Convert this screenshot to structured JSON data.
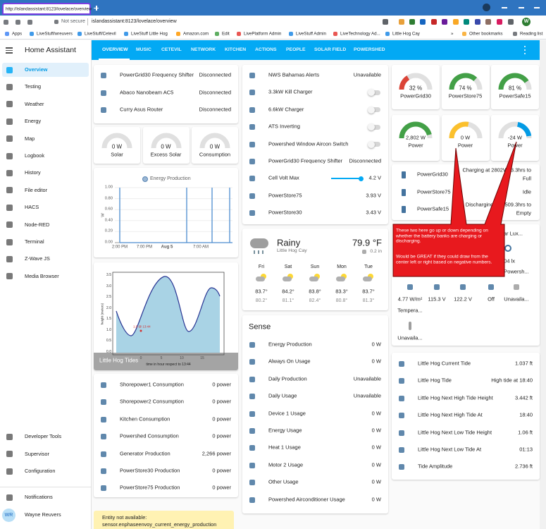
{
  "browser": {
    "tab_title": "http://islandassistant:8123/lovelace/overview",
    "security": "Not secure",
    "url": "islandassistant:8123/lovelace/overview",
    "profile_initial": "W",
    "bookmarks": [
      "Apps",
      "LiveStuff/wreuvers",
      "LiveStuff/Cetevil",
      "LiveStuff Little Hog",
      "Amazon.com",
      "Edit",
      "LivePlatform Admin",
      "LiveStuff Admin",
      "LiveTechnology Ad...",
      "Little Hog Cay",
      "»",
      "Other bookmarks",
      "Reading list"
    ]
  },
  "sidebar": {
    "title": "Home Assistant",
    "items": [
      "Overview",
      "Testing",
      "Weather",
      "Energy",
      "Map",
      "Logbook",
      "History",
      "File editor",
      "HACS",
      "Node-RED",
      "Terminal",
      "Z-Wave JS",
      "Media Browser"
    ],
    "bottom_items": [
      "Developer Tools",
      "Supervisor",
      "Configuration"
    ],
    "notifications": "Notifications",
    "user": {
      "initials": "WR",
      "name": "Wayne Reuvers"
    }
  },
  "tabs": [
    "OVERVIEW",
    "MUSIC",
    "CETEVIL",
    "NETWORK",
    "KITCHEN",
    "ACTIONS",
    "PEOPLE",
    "SOLAR FIELD",
    "POWERSHED"
  ],
  "column_1": {
    "network": [
      {
        "name": "PowerGrid30 Frequency Shifter",
        "state": "Disconnected"
      },
      {
        "name": "Abaco Nanobeam AC5",
        "state": "Disconnected"
      },
      {
        "name": "Curry Asus Router",
        "state": "Disconnected"
      }
    ],
    "solar_gauges": [
      {
        "value": "0 W",
        "name": "Solar"
      },
      {
        "value": "0 W",
        "name": "Excess Solar"
      },
      {
        "value": "0 W",
        "name": "Consumption"
      }
    ],
    "energy_chart": {
      "title": "Energy Production",
      "unit": "W",
      "yticks": [
        "1.00",
        "0.80",
        "0.60",
        "0.40",
        "0.20",
        "0.00"
      ],
      "xticks": [
        "2:00 PM",
        "7:00 PM",
        "Aug 5",
        "7:00 AM"
      ]
    },
    "tide_chart": {
      "title": "Little Hog Tides",
      "ylabel": "height (meters)",
      "xlabel": "time in hour respect to 13:44",
      "annotation": "1.0 @ 13:44",
      "yticks": [
        "3.5",
        "3.0",
        "2.5",
        "2.0",
        "1.5",
        "1.0",
        "0.5",
        "0.0"
      ],
      "xticks": [
        "0",
        "5",
        "10",
        "15"
      ]
    },
    "consumption": [
      {
        "name": "Shorepower1 Consumption",
        "state": "0 power"
      },
      {
        "name": "Shorepower2 Consumption",
        "state": "0 power"
      },
      {
        "name": "Kitchen Consumption",
        "state": "0 power"
      },
      {
        "name": "Powershed Consumption",
        "state": "0 power"
      },
      {
        "name": "Generator Production",
        "state": "2,266 power"
      },
      {
        "name": "PowerStore30 Production",
        "state": "0 power"
      },
      {
        "name": "PowerStore75 Production",
        "state": "0 power"
      }
    ],
    "warning": [
      "Entity not available:",
      "sensor.enphaseenvoy_current_energy_production"
    ]
  },
  "column_2": {
    "controls": [
      {
        "name": "NWS Bahamas Alerts",
        "state": "Unavailable"
      },
      {
        "name": "3.3kW Kill Charger",
        "toggle": false
      },
      {
        "name": "6.6kW Charger",
        "toggle": false
      },
      {
        "name": "ATS Inverting",
        "toggle": false
      },
      {
        "name": "Powershed Window Aircon Switch",
        "toggle": false
      },
      {
        "name": "PowerGrid30 Frequency Shifter",
        "state": "Disconnected"
      },
      {
        "name": "Cell Volt Max",
        "state": "4.2 V",
        "slider": true
      },
      {
        "name": "PowerStore75",
        "state": "3.93 V"
      },
      {
        "name": "PowerStore30",
        "state": "3.43 V"
      }
    ],
    "weather": {
      "condition": "Rainy",
      "location": "Little Hog Cay",
      "temperature": "79.9 °F",
      "precipitation": "0.2 in",
      "forecast": [
        {
          "day": "Fri",
          "high": "83.7°",
          "low": "80.2°"
        },
        {
          "day": "Sat",
          "high": "84.2°",
          "low": "81.1°"
        },
        {
          "day": "Sun",
          "high": "83.8°",
          "low": "82.4°"
        },
        {
          "day": "Mon",
          "high": "83.3°",
          "low": "80.8°"
        },
        {
          "day": "Tue",
          "high": "83.7°",
          "low": "81.3°"
        }
      ]
    },
    "sense": {
      "title": "Sense",
      "rows": [
        {
          "name": "Energy Production",
          "state": "0 W"
        },
        {
          "name": "Always On Usage",
          "state": "0 W"
        },
        {
          "name": "Daily Production",
          "state": "Unavailable"
        },
        {
          "name": "Daily Usage",
          "state": "Unavailable"
        },
        {
          "name": "Device 1 Usage",
          "state": "0 W"
        },
        {
          "name": "Energy Usage",
          "state": "0 W"
        },
        {
          "name": "Heat 1 Usage",
          "state": "0 W"
        },
        {
          "name": "Motor 2 Usage",
          "state": "0 W"
        },
        {
          "name": "Other Usage",
          "state": "0 W"
        },
        {
          "name": "Powershed Airconditioner Usage",
          "state": "0 W"
        }
      ]
    }
  },
  "column_3": {
    "gauge_range": [
      0,
      100
    ],
    "battery_gauges": [
      {
        "value": 32,
        "unit": "%",
        "name": "PowerGrid30",
        "color": "#db4437"
      },
      {
        "value": 74,
        "unit": "%",
        "name": "PowerStore75",
        "color": "#43a047"
      },
      {
        "value": 81,
        "unit": "%",
        "name": "PowerSafe15",
        "color": "#43a047"
      }
    ],
    "power_gauges": [
      {
        "value": "2,802 W",
        "name": "Power",
        "color": "#43a047"
      },
      {
        "value": "0 W",
        "name": "Power",
        "color": "#fbc02d"
      },
      {
        "value": "-24 W",
        "name": "Power",
        "color": "#039be5"
      }
    ],
    "batteries": [
      {
        "name": "PowerGrid30",
        "status": [
          "Charging at 2802W, 3.3hrs to",
          "Full"
        ]
      },
      {
        "name": "PowerStore75",
        "status": [
          "Idle"
        ]
      },
      {
        "name": "PowerSafe15",
        "status": [
          "Discharging at 7",
          "509.3hrs to",
          "Empty"
        ]
      }
    ],
    "solar_lux": {
      "name": "Solar Lux...",
      "state": "604 lx",
      "sub": "Powersh..."
    },
    "glance": [
      {
        "state": "4.77 W/m²",
        "name": "Tempera..."
      },
      {
        "state": "115.3 V"
      },
      {
        "state": "122.2 V"
      },
      {
        "state": "Off"
      },
      {
        "state": "Unavaila..."
      }
    ],
    "extra_sensor": "Unavaila...",
    "tides": [
      {
        "name": "Little Hog Current Tide",
        "state": "1.037 ft"
      },
      {
        "name": "Little Hog Tide",
        "state": "High tide at 18:40"
      },
      {
        "name": "Little Hog Next High Tide Height",
        "state": "3.442 ft"
      },
      {
        "name": "Little Hog Next High Tide At",
        "state": "18:40"
      },
      {
        "name": "Little Hog Next Low Tide Height",
        "state": "1.06 ft"
      },
      {
        "name": "Little Hog Next Low Tide At",
        "state": "01:13"
      },
      {
        "name": "Tide Amplitude",
        "state": "2.736 ft"
      }
    ]
  },
  "annotation": {
    "lines": [
      "These two here go up or down depending on whether the battery banks are charging or discharging.",
      "Would be GREAT if they could draw from the center left or right based on negative numbers."
    ]
  }
}
